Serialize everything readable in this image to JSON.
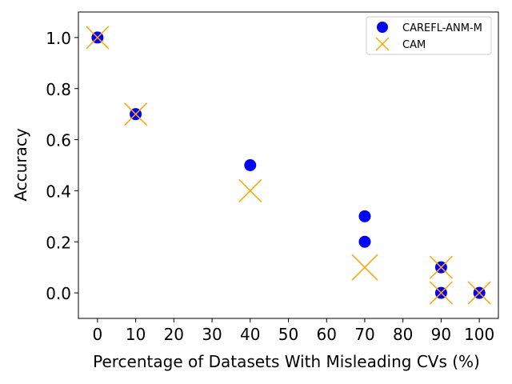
{
  "chart_data": {
    "type": "scatter",
    "title": "",
    "xlabel": "Percentage of Datasets With Misleading CVs (%)",
    "ylabel": "Accuracy",
    "xlim": [
      -5,
      105
    ],
    "ylim": [
      -0.1,
      1.1
    ],
    "xticks": [
      0,
      10,
      20,
      30,
      40,
      50,
      60,
      70,
      80,
      90,
      100
    ],
    "yticks": [
      0.0,
      0.2,
      0.4,
      0.6,
      0.8,
      1.0
    ],
    "xtick_labels": [
      "0",
      "10",
      "20",
      "30",
      "40",
      "50",
      "60",
      "70",
      "80",
      "90",
      "100"
    ],
    "ytick_labels": [
      "0.0",
      "0.2",
      "0.4",
      "0.6",
      "0.8",
      "1.0"
    ],
    "grid": false,
    "legend_position": "top-right",
    "series": [
      {
        "name": "CAREFL-ANM-M",
        "marker": "circle",
        "color": "#0000ff",
        "points": [
          {
            "x": 0,
            "y": 1.0
          },
          {
            "x": 10,
            "y": 0.7
          },
          {
            "x": 40,
            "y": 0.5
          },
          {
            "x": 70,
            "y": 0.3
          },
          {
            "x": 70,
            "y": 0.2
          },
          {
            "x": 90,
            "y": 0.1
          },
          {
            "x": 90,
            "y": 0.0
          },
          {
            "x": 100,
            "y": 0.0
          }
        ]
      },
      {
        "name": "CAM",
        "marker": "x",
        "color": "#ffa500",
        "points": [
          {
            "x": 0,
            "y": 1.0,
            "weight": 1
          },
          {
            "x": 10,
            "y": 0.7,
            "weight": 1
          },
          {
            "x": 40,
            "y": 0.4,
            "weight": 1
          },
          {
            "x": 70,
            "y": 0.1,
            "weight": 2
          },
          {
            "x": 90,
            "y": 0.1,
            "weight": 1
          },
          {
            "x": 90,
            "y": 0.0,
            "weight": 1
          },
          {
            "x": 100,
            "y": 0.0,
            "weight": 1
          }
        ]
      }
    ]
  }
}
